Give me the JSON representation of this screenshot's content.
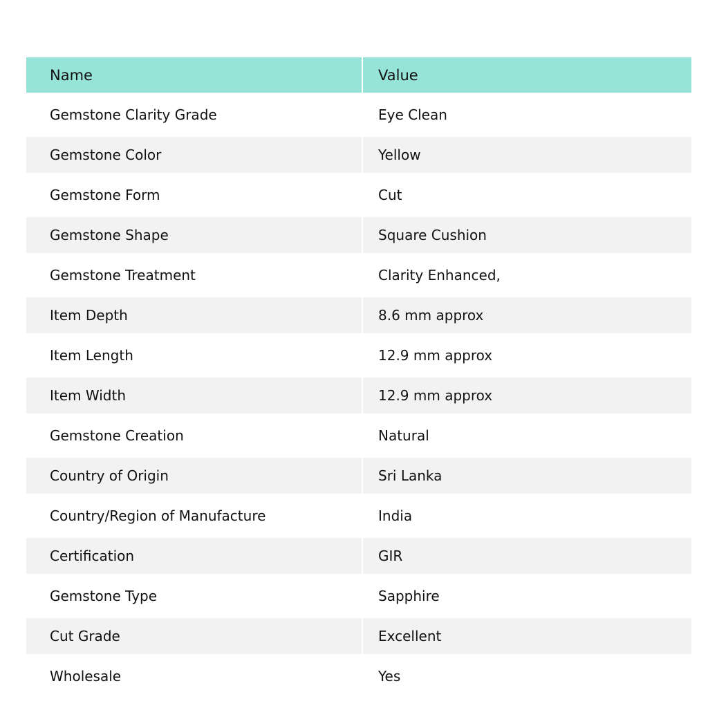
{
  "colors": {
    "header_bg": "#96e3d8",
    "stripe_bg": "#f2f2f2"
  },
  "table": {
    "headers": [
      "Name",
      "Value"
    ],
    "rows": [
      [
        "Gemstone Clarity Grade",
        "Eye Clean"
      ],
      [
        "Gemstone Color",
        "Yellow"
      ],
      [
        "Gemstone Form",
        "Cut"
      ],
      [
        "Gemstone Shape",
        "Square Cushion"
      ],
      [
        "Gemstone Treatment",
        "Clarity Enhanced,"
      ],
      [
        "Item Depth",
        "8.6 mm approx"
      ],
      [
        "Item Length",
        "12.9 mm approx"
      ],
      [
        "Item Width",
        "12.9 mm approx"
      ],
      [
        "Gemstone Creation",
        "Natural"
      ],
      [
        "Country of Origin",
        "Sri Lanka"
      ],
      [
        "Country/Region of Manufacture",
        "India"
      ],
      [
        "Certification",
        "GIR"
      ],
      [
        "Gemstone Type",
        "Sapphire"
      ],
      [
        "Cut Grade",
        "Excellent"
      ],
      [
        "Wholesale",
        "Yes"
      ]
    ]
  }
}
